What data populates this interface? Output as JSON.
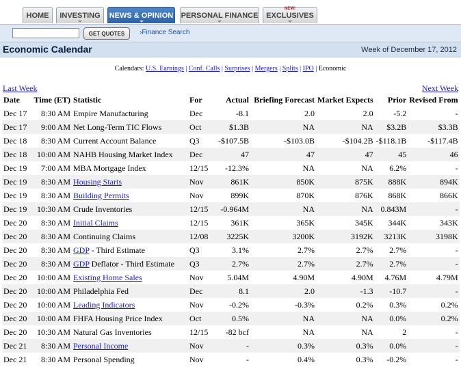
{
  "nav": {
    "tabs": [
      {
        "label": "HOME"
      },
      {
        "label": "INVESTING"
      },
      {
        "label": "NEWS & OPINION"
      },
      {
        "label": "PERSONAL FINANCE"
      },
      {
        "label": "EXCLUSIVES"
      }
    ],
    "new_badge": "NEW!"
  },
  "search": {
    "placeholder": "",
    "button_label": "GET QUOTES",
    "link_label": "Finance Search",
    "link_prefix": "›"
  },
  "header": {
    "title": "Economic Calendar",
    "week": "Week of December 17, 2012"
  },
  "calendars": {
    "prefix": "Calendars:",
    "links": [
      {
        "label": "U.S. Earnings"
      },
      {
        "label": "Conf. Calls"
      },
      {
        "label": "Surprises"
      },
      {
        "label": "Mergers"
      },
      {
        "label": "Splits"
      },
      {
        "label": "IPO"
      }
    ],
    "current": "Economic"
  },
  "paging": {
    "last": "Last Week",
    "next": "Next Week"
  },
  "table": {
    "columns": [
      "Date",
      "Time (ET)",
      "Statistic",
      "For",
      "Actual",
      "Briefing Forecast",
      "Market Expects",
      "Prior",
      "Revised From"
    ],
    "rows": [
      {
        "date": "Dec 17",
        "time": "8:30 AM",
        "stat": "Empire Manufacturing",
        "link": "",
        "suffix": "",
        "for": "Dec",
        "actual": "-8.1",
        "forecast": "2.0",
        "expects": "2.0",
        "prior": "-5.2",
        "revised": "-"
      },
      {
        "date": "Dec 17",
        "time": "9:00 AM",
        "stat": "Net Long-Term TIC Flows",
        "link": "",
        "suffix": "",
        "for": "Oct",
        "actual": "$1.3B",
        "forecast": "NA",
        "expects": "NA",
        "prior": "$3.2B",
        "revised": "$3.3B"
      },
      {
        "date": "Dec 18",
        "time": "8:30 AM",
        "stat": "Current Account Balance",
        "link": "",
        "suffix": "",
        "for": "Q3",
        "actual": "-$107.5B",
        "forecast": "-$103.0B",
        "expects": "-$104.2B",
        "prior": "-$118.1B",
        "revised": "-$117.4B"
      },
      {
        "date": "Dec 18",
        "time": "10:00 AM",
        "stat": "NAHB Housing Market Index",
        "link": "",
        "suffix": "",
        "for": "Dec",
        "actual": "47",
        "forecast": "47",
        "expects": "47",
        "prior": "45",
        "revised": "46"
      },
      {
        "date": "Dec 19",
        "time": "7:00 AM",
        "stat": "MBA Mortgage Index",
        "link": "",
        "suffix": "",
        "for": "12/15",
        "actual": "-12.3%",
        "forecast": "NA",
        "expects": "NA",
        "prior": "6.2%",
        "revised": "-"
      },
      {
        "date": "Dec 19",
        "time": "8:30 AM",
        "stat": "",
        "link": "Housing Starts",
        "suffix": "",
        "for": "Nov",
        "actual": "861K",
        "forecast": "850K",
        "expects": "875K",
        "prior": "888K",
        "revised": "894K"
      },
      {
        "date": "Dec 19",
        "time": "8:30 AM",
        "stat": "",
        "link": "Building Permits",
        "suffix": "",
        "for": "Nov",
        "actual": "899K",
        "forecast": "870K",
        "expects": "876K",
        "prior": "868K",
        "revised": "866K"
      },
      {
        "date": "Dec 19",
        "time": "10:30 AM",
        "stat": "Crude Inventories",
        "link": "",
        "suffix": "",
        "for": "12/15",
        "actual": "-0.964M",
        "forecast": "NA",
        "expects": "NA",
        "prior": "0.843M",
        "revised": "-"
      },
      {
        "date": "Dec 20",
        "time": "8:30 AM",
        "stat": "",
        "link": "Initial Claims",
        "suffix": "",
        "for": "12/15",
        "actual": "361K",
        "forecast": "365K",
        "expects": "345K",
        "prior": "344K",
        "revised": "343K"
      },
      {
        "date": "Dec 20",
        "time": "8:30 AM",
        "stat": "Continuing Claims",
        "link": "",
        "suffix": "",
        "for": "12/08",
        "actual": "3225K",
        "forecast": "3200K",
        "expects": "3192K",
        "prior": "3213K",
        "revised": "3198K"
      },
      {
        "date": "Dec 20",
        "time": "8:30 AM",
        "stat": "",
        "link": "GDP",
        "suffix": " - Third Estimate",
        "for": "Q3",
        "actual": "3.1%",
        "forecast": "2.7%",
        "expects": "2.7%",
        "prior": "2.7%",
        "revised": "-"
      },
      {
        "date": "Dec 20",
        "time": "8:30 AM",
        "stat": "",
        "link": "GDP",
        "suffix": " Deflator - Third Estimate",
        "for": "Q3",
        "actual": "2.7%",
        "forecast": "2.7%",
        "expects": "2.7%",
        "prior": "2.7%",
        "revised": "-"
      },
      {
        "date": "Dec 20",
        "time": "10:00 AM",
        "stat": "",
        "link": "Existing Home Sales",
        "suffix": "",
        "for": "Nov",
        "actual": "5.04M",
        "forecast": "4.90M",
        "expects": "4.90M",
        "prior": "4.76M",
        "revised": "4.79M"
      },
      {
        "date": "Dec 20",
        "time": "10:00 AM",
        "stat": "Philadelphia Fed",
        "link": "",
        "suffix": "",
        "for": "Dec",
        "actual": "8.1",
        "forecast": "2.0",
        "expects": "-1.3",
        "prior": "-10.7",
        "revised": "-"
      },
      {
        "date": "Dec 20",
        "time": "10:00 AM",
        "stat": "",
        "link": "Leading Indicators",
        "suffix": "",
        "for": "Nov",
        "actual": "-0.2%",
        "forecast": "-0.3%",
        "expects": "0.2%",
        "prior": "0.3%",
        "revised": "0.2%"
      },
      {
        "date": "Dec 20",
        "time": "10:00 AM",
        "stat": "FHFA Housing Price Index",
        "link": "",
        "suffix": "",
        "for": "Oct",
        "actual": "0.5%",
        "forecast": "NA",
        "expects": "NA",
        "prior": "0.0%",
        "revised": "0.2%"
      },
      {
        "date": "Dec 20",
        "time": "10:30 AM",
        "stat": "Natural Gas Inventories",
        "link": "",
        "suffix": "",
        "for": "12/15",
        "actual": "-82 bcf",
        "forecast": "NA",
        "expects": "NA",
        "prior": "2",
        "revised": "-"
      },
      {
        "date": "Dec 21",
        "time": "8:30 AM",
        "stat": "",
        "link": "Personal Income",
        "suffix": "",
        "for": "Nov",
        "actual": "-",
        "forecast": "0.3%",
        "expects": "0.3%",
        "prior": "0.0%",
        "revised": "-"
      },
      {
        "date": "Dec 21",
        "time": "8:30 AM",
        "stat": "Personal Spending",
        "link": "",
        "suffix": "",
        "for": "Nov",
        "actual": "-",
        "forecast": "0.4%",
        "expects": "0.3%",
        "prior": "-0.2%",
        "revised": "-"
      }
    ]
  }
}
